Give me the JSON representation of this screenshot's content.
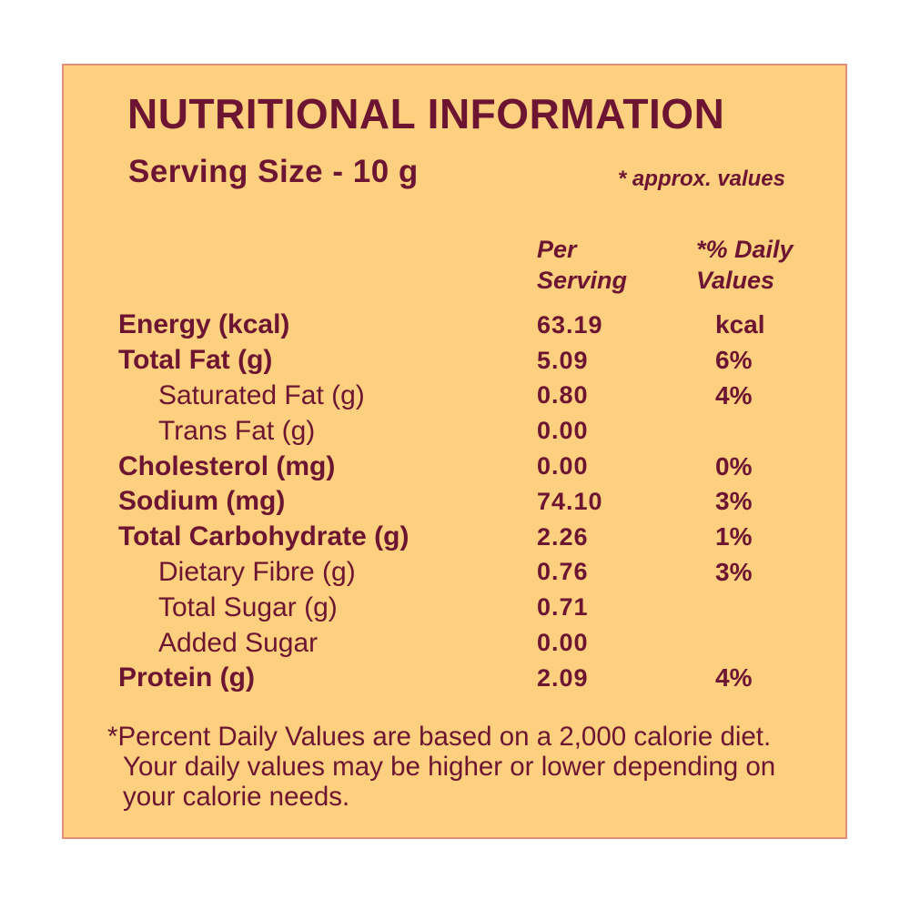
{
  "colors": {
    "page_background": "#ffffff",
    "panel_background": "#fcd07f",
    "text": "#6c1431",
    "panel_border": "#e2907a"
  },
  "header": {
    "title": "NUTRITIONAL INFORMATION",
    "serving_size": "Serving Size - 10 g",
    "approx_note": "* approx. values"
  },
  "table": {
    "columns": {
      "per_serving_line1": "Per",
      "per_serving_line2": "Serving",
      "daily_values_line1": "*% Daily",
      "daily_values_line2": "Values"
    },
    "rows": [
      {
        "label": "Energy (kcal)",
        "per_serving": "63.19",
        "daily_value": "kcal",
        "level": "main"
      },
      {
        "label": "Total Fat (g)",
        "per_serving": "5.09",
        "daily_value": "6%",
        "level": "main"
      },
      {
        "label": "Saturated Fat (g)",
        "per_serving": "0.80",
        "daily_value": "4%",
        "level": "sub"
      },
      {
        "label": "Trans Fat (g)",
        "per_serving": "0.00",
        "daily_value": "",
        "level": "sub"
      },
      {
        "label": "Cholesterol (mg)",
        "per_serving": "0.00",
        "daily_value": "0%",
        "level": "main"
      },
      {
        "label": "Sodium (mg)",
        "per_serving": "74.10",
        "daily_value": "3%",
        "level": "main"
      },
      {
        "label": "Total Carbohydrate (g)",
        "per_serving": "2.26",
        "daily_value": "1%",
        "level": "main"
      },
      {
        "label": "Dietary Fibre (g)",
        "per_serving": "0.76",
        "daily_value": "3%",
        "level": "sub"
      },
      {
        "label": "Total Sugar (g)",
        "per_serving": "0.71",
        "daily_value": "",
        "level": "sub"
      },
      {
        "label": "Added Sugar",
        "per_serving": "0.00",
        "daily_value": "",
        "level": "sub"
      },
      {
        "label": "Protein (g)",
        "per_serving": "2.09",
        "daily_value": "4%",
        "level": "main"
      }
    ]
  },
  "footnote": {
    "line1": "*Percent Daily Values are based on a 2,000 calorie diet.",
    "line2": "Your daily values may be higher or lower depending on",
    "line3": "your calorie needs."
  }
}
